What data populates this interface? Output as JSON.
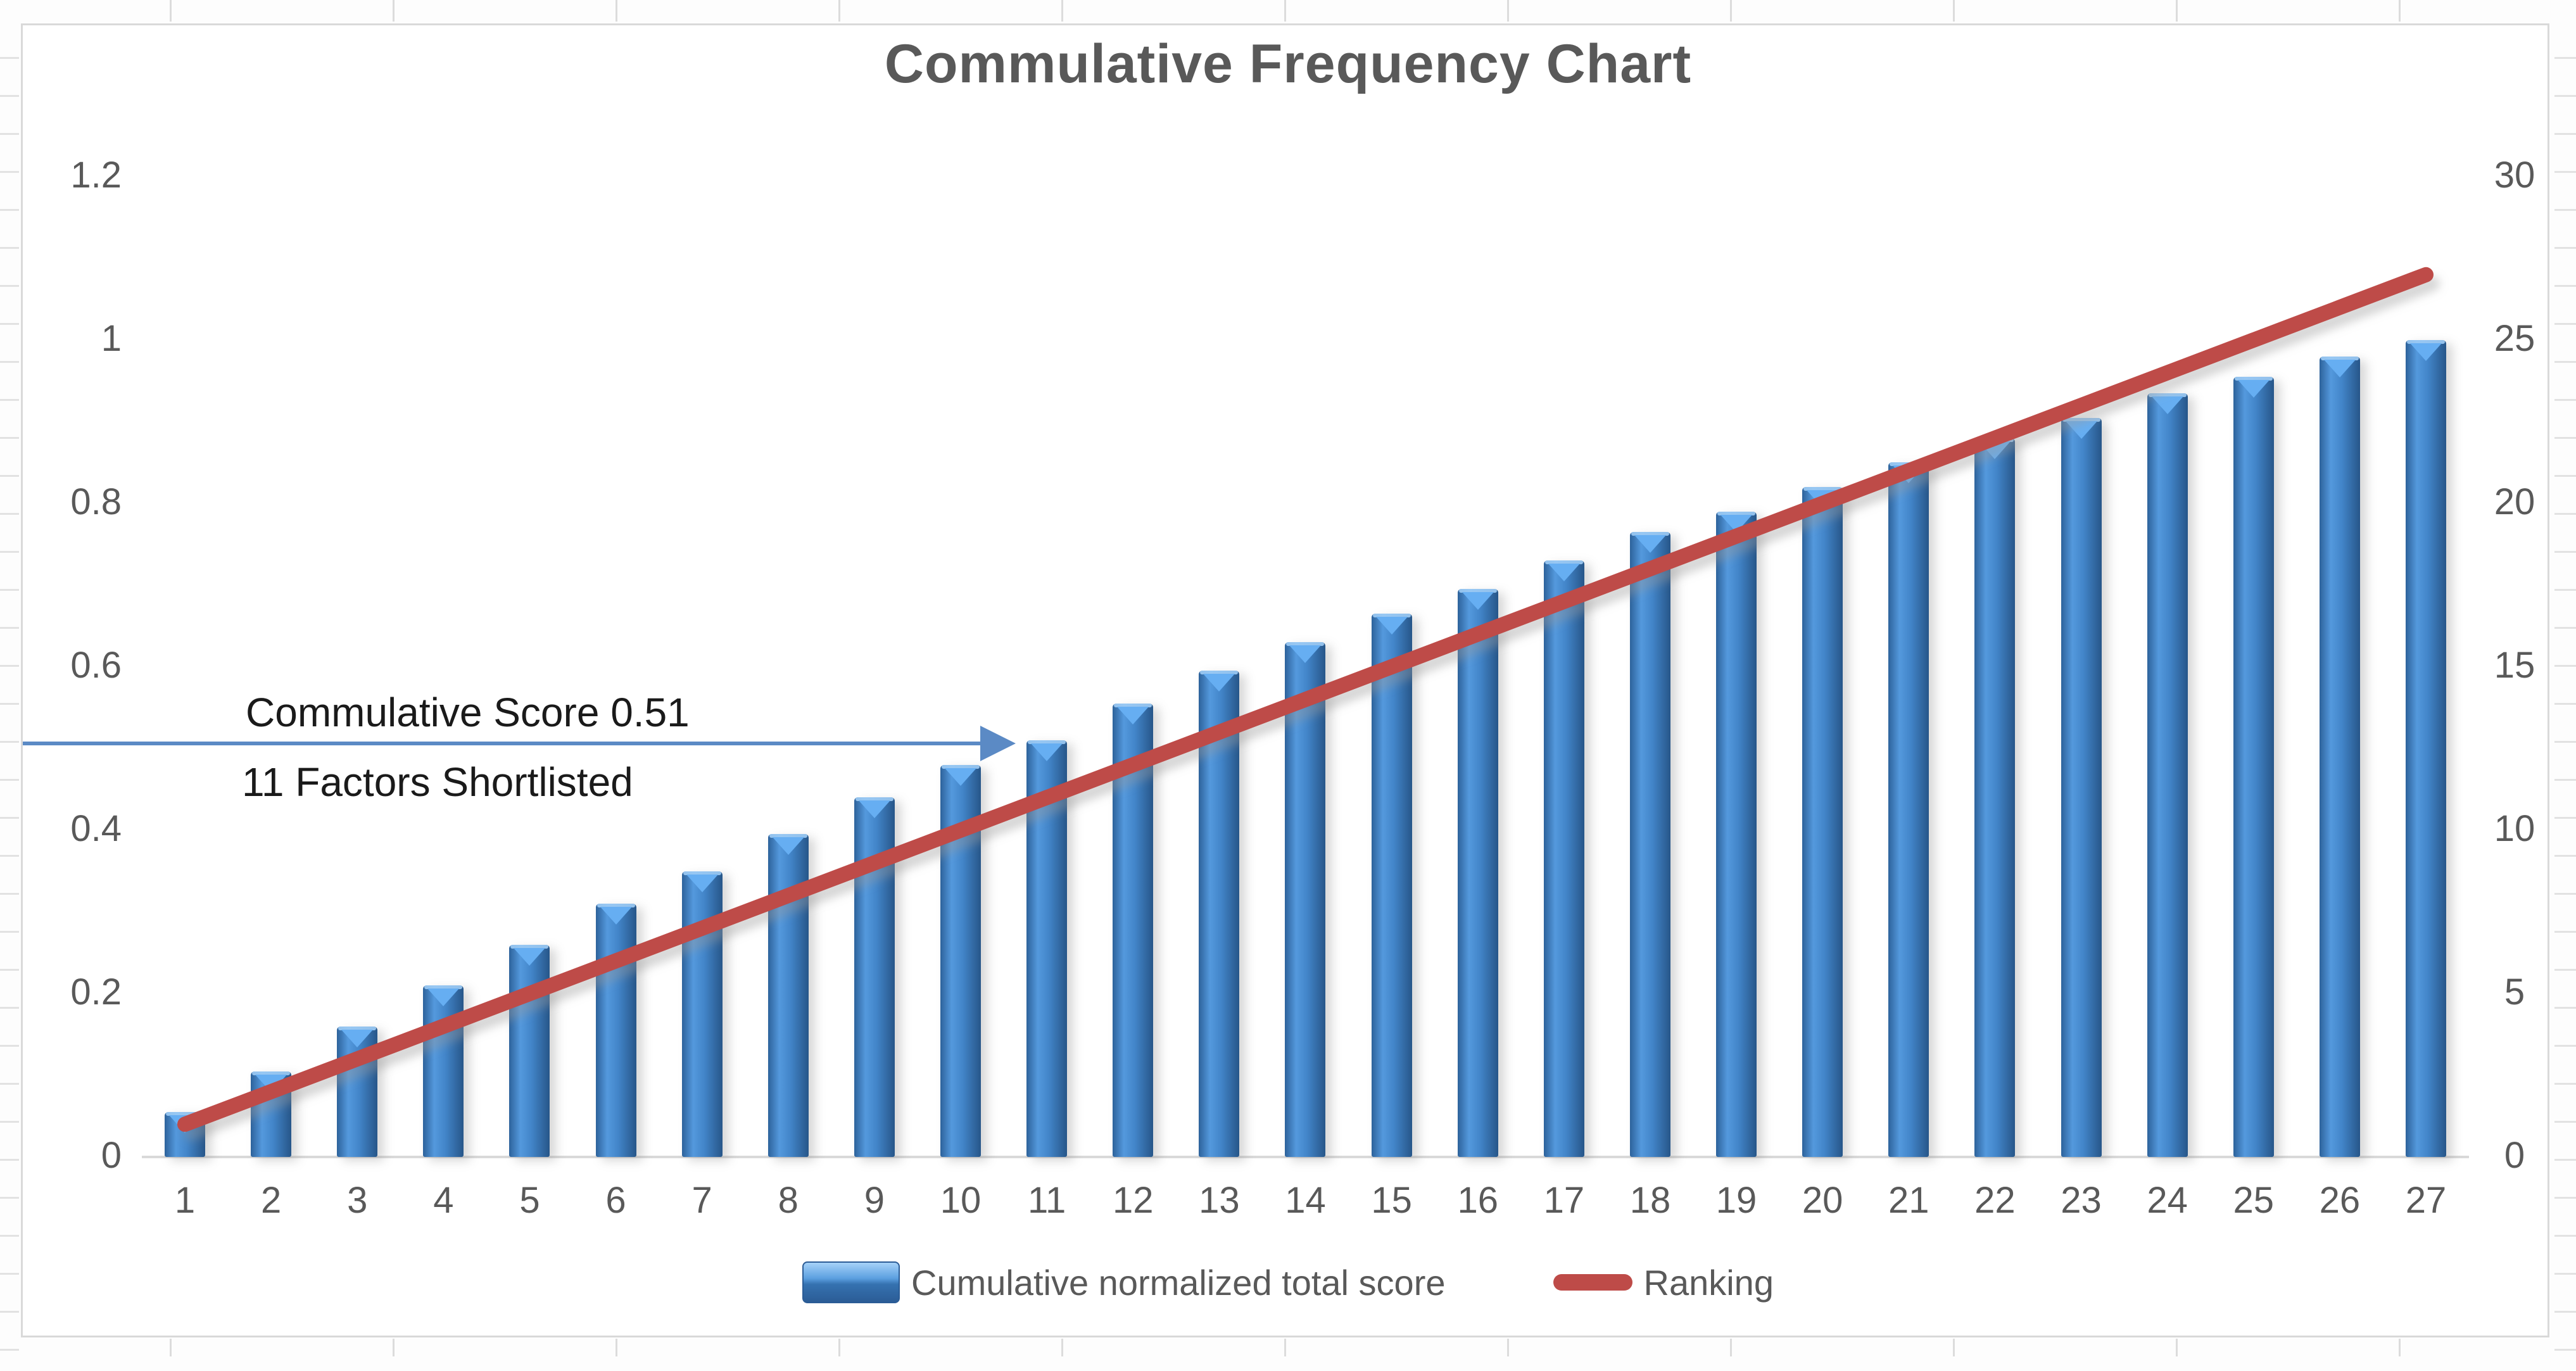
{
  "title": "Commulative Frequency Chart",
  "annotation": {
    "line1": "Commulative Score 0.51",
    "line2": "11 Factors Shortlisted"
  },
  "legend": [
    {
      "label": "Cumulative normalized total score",
      "swatch": "bar-swatch-blue"
    },
    {
      "label": "Ranking",
      "swatch": "line-swatch-red"
    }
  ],
  "left_axis": {
    "ticks": [
      "1.2",
      "1",
      "0.8",
      "0.6",
      "0.4",
      "0.2",
      "0"
    ],
    "min": 0,
    "max": 1.2
  },
  "right_axis": {
    "ticks": [
      "30",
      "25",
      "20",
      "15",
      "10",
      "5",
      "0"
    ],
    "min": 0,
    "max": 30
  },
  "colors": {
    "bar_fill": "#4285c9",
    "bar_edge": "#275689",
    "bar_highlight": "#66aef2",
    "ranking_line": "#be4b48",
    "annotation_arrow": "#5b8ac5",
    "text_gray": "#595959",
    "axis_line": "#d9d9d9"
  },
  "chart_data": {
    "type": "bar+line",
    "title": "Commulative Frequency Chart",
    "categories": [
      "1",
      "2",
      "3",
      "4",
      "5",
      "6",
      "7",
      "8",
      "9",
      "10",
      "11",
      "12",
      "13",
      "14",
      "15",
      "16",
      "17",
      "18",
      "19",
      "20",
      "21",
      "22",
      "23",
      "24",
      "25",
      "26",
      "27"
    ],
    "series": [
      {
        "name": "Cumulative normalized total score",
        "type": "bar",
        "axis": "left",
        "values": [
          0.055,
          0.105,
          0.16,
          0.21,
          0.26,
          0.31,
          0.35,
          0.395,
          0.44,
          0.48,
          0.51,
          0.555,
          0.595,
          0.63,
          0.665,
          0.695,
          0.73,
          0.765,
          0.79,
          0.82,
          0.85,
          0.88,
          0.905,
          0.935,
          0.955,
          0.98,
          1.0
        ]
      },
      {
        "name": "Ranking",
        "type": "line",
        "axis": "right",
        "values": [
          1,
          2,
          3,
          4,
          5,
          6,
          7,
          8,
          9,
          10,
          11,
          12,
          13,
          14,
          15,
          16,
          17,
          18,
          19,
          20,
          21,
          22,
          23,
          24,
          25,
          26,
          27
        ]
      }
    ],
    "left_ylim": [
      0,
      1.2
    ],
    "right_ylim": [
      0,
      30
    ],
    "gridlines": false,
    "legend_position": "bottom",
    "annotation": {
      "text": [
        "Commulative Score 0.51",
        "11 Factors Shortlisted"
      ],
      "arrow_points_to_category": "11",
      "marked_value": 0.51
    }
  }
}
